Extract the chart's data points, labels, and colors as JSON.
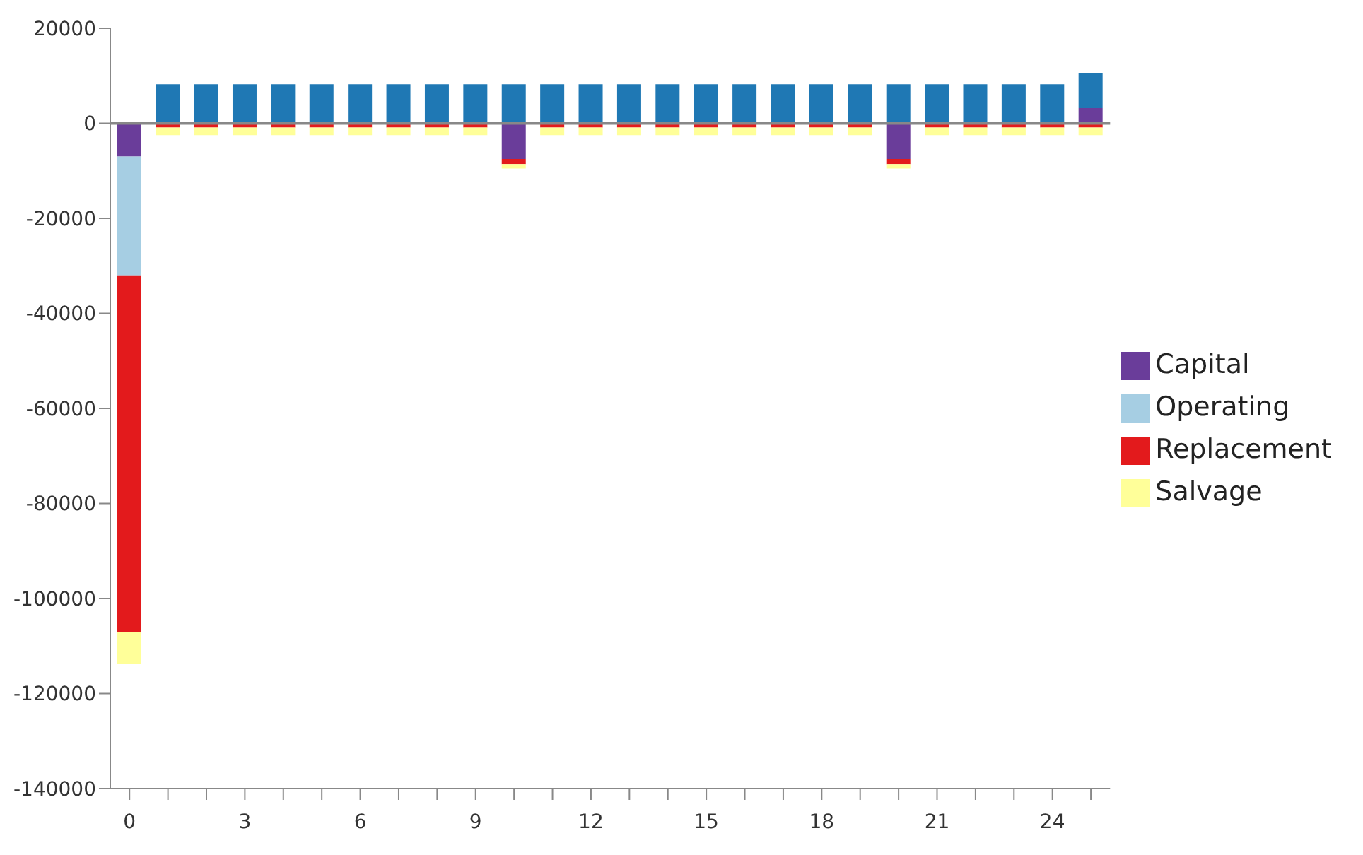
{
  "chart_data": {
    "type": "bar",
    "stacked": true,
    "categories": [
      "0",
      null,
      null,
      "3",
      null,
      null,
      "6",
      null,
      null,
      "9",
      null,
      null,
      "12",
      null,
      null,
      "15",
      null,
      null,
      "18",
      null,
      null,
      "21",
      null,
      null,
      "24",
      null
    ],
    "series": [
      {
        "name": "Capital",
        "color": "#6a3d9a",
        "values": [
          -7000,
          null,
          null,
          null,
          null,
          null,
          null,
          null,
          null,
          null,
          -7500,
          null,
          null,
          null,
          null,
          null,
          null,
          null,
          null,
          null,
          -7500,
          null,
          null,
          null,
          null,
          3200
        ]
      },
      {
        "name": "Operating",
        "color": "#a6cee3",
        "values": [
          -25000,
          null,
          null,
          null,
          null,
          null,
          null,
          null,
          null,
          null,
          null,
          null,
          null,
          null,
          null,
          null,
          null,
          null,
          null,
          null,
          null,
          null,
          null,
          null,
          null,
          null
        ]
      },
      {
        "name": "Replacement",
        "color": "#e31a1c",
        "values": [
          -75000,
          -900,
          -900,
          -900,
          -900,
          -900,
          -900,
          -900,
          -900,
          -900,
          -1100,
          -900,
          -900,
          -900,
          -900,
          -900,
          -900,
          -900,
          -900,
          -900,
          -1100,
          -900,
          -900,
          -900,
          -900,
          -900
        ]
      },
      {
        "name": "Salvage",
        "color": "#ffff99",
        "values": [
          -6700,
          -1600,
          -1600,
          -1600,
          -1600,
          -1600,
          -1600,
          -1600,
          -1600,
          -1600,
          -900,
          -1600,
          -1600,
          -1600,
          -1600,
          -1600,
          -1600,
          -1600,
          -1600,
          -1600,
          -900,
          -1600,
          -1600,
          -1600,
          -1600,
          -1600
        ]
      },
      {
        "color": "#1f78b4",
        "values": [
          null,
          8200,
          8200,
          8200,
          8200,
          8200,
          8200,
          8200,
          8200,
          8200,
          8200,
          8200,
          8200,
          8200,
          8200,
          8200,
          8200,
          8200,
          8200,
          8200,
          8200,
          8200,
          8200,
          8200,
          8200,
          7400
        ]
      }
    ],
    "ylim": [
      -140000,
      20000
    ],
    "yticks": [
      20000,
      0,
      -20000,
      -40000,
      -60000,
      -80000,
      -100000,
      -120000,
      -140000
    ],
    "ref_lines": [
      {
        "axis": "y",
        "value": 0,
        "color": "#888888"
      }
    ],
    "legend": "right"
  }
}
